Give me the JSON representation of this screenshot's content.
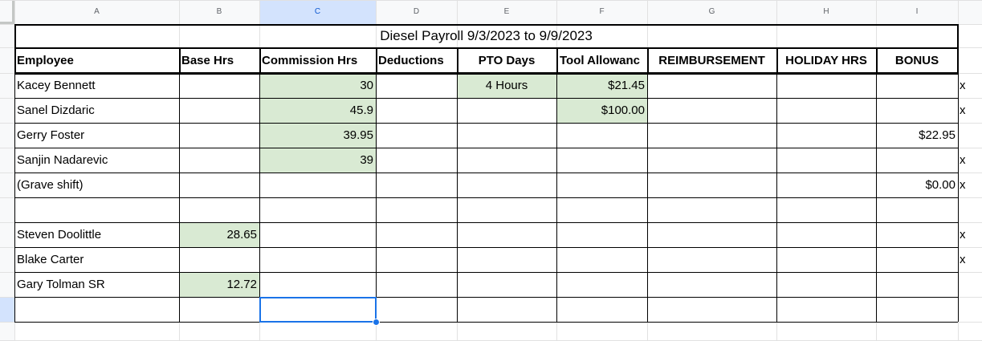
{
  "columns": [
    "A",
    "B",
    "C",
    "D",
    "E",
    "F",
    "G",
    "H",
    "I"
  ],
  "title": "Diesel Payroll 9/3/2023 to 9/9/2023",
  "headers": [
    "Employee",
    "Base Hrs",
    "Commission Hrs",
    "Deductions",
    "PTO Days",
    "Tool Allowanc",
    "REIMBURSEMENT",
    "HOLIDAY HRS",
    "BONUS"
  ],
  "rows": [
    {
      "employee": "Kacey Bennett",
      "base": "",
      "commission": "30",
      "deductions": "",
      "pto": "4 Hours",
      "tool": "$21.45",
      "reimb": "",
      "holiday": "",
      "bonus": "",
      "mark": "x"
    },
    {
      "employee": "Sanel Dizdaric",
      "base": "",
      "commission": "45.9",
      "deductions": "",
      "pto": "",
      "tool": "$100.00",
      "reimb": "",
      "holiday": "",
      "bonus": "",
      "mark": "x"
    },
    {
      "employee": "Gerry Foster",
      "base": "",
      "commission": "39.95",
      "deductions": "",
      "pto": "",
      "tool": "",
      "reimb": "",
      "holiday": "",
      "bonus": "$22.95",
      "mark": ""
    },
    {
      "employee": "Sanjin Nadarevic",
      "base": "",
      "commission": "39",
      "deductions": "",
      "pto": "",
      "tool": "",
      "reimb": "",
      "holiday": "",
      "bonus": "",
      "mark": "x"
    },
    {
      "employee": "(Grave shift)",
      "base": "",
      "commission": "",
      "deductions": "",
      "pto": "",
      "tool": "",
      "reimb": "",
      "holiday": "",
      "bonus": "$0.00",
      "mark": "x"
    },
    {
      "employee": "",
      "base": "",
      "commission": "",
      "deductions": "",
      "pto": "",
      "tool": "",
      "reimb": "",
      "holiday": "",
      "bonus": "",
      "mark": ""
    },
    {
      "employee": "Steven Doolittle",
      "base": "28.65",
      "commission": "",
      "deductions": "",
      "pto": "",
      "tool": "",
      "reimb": "",
      "holiday": "",
      "bonus": "",
      "mark": "x"
    },
    {
      "employee": "Blake Carter",
      "base": "",
      "commission": "",
      "deductions": "",
      "pto": "",
      "tool": "",
      "reimb": "",
      "holiday": "",
      "bonus": "",
      "mark": "x"
    },
    {
      "employee": "Gary Tolman SR",
      "base": "12.72",
      "commission": "",
      "deductions": "",
      "pto": "",
      "tool": "",
      "reimb": "",
      "holiday": "",
      "bonus": "",
      "mark": ""
    },
    {
      "employee": "",
      "base": "",
      "commission": "",
      "deductions": "",
      "pto": "",
      "tool": "",
      "reimb": "",
      "holiday": "",
      "bonus": "",
      "mark": ""
    }
  ],
  "green_cells": [
    [
      0,
      "commission"
    ],
    [
      0,
      "pto"
    ],
    [
      0,
      "tool"
    ],
    [
      1,
      "commission"
    ],
    [
      1,
      "tool"
    ],
    [
      2,
      "commission"
    ],
    [
      3,
      "commission"
    ],
    [
      6,
      "base"
    ],
    [
      8,
      "base"
    ]
  ],
  "selected_cell": "C10",
  "colors": {
    "green": "#d9ead3",
    "selection": "#1a73e8",
    "header_selected": "#d3e3fd"
  }
}
